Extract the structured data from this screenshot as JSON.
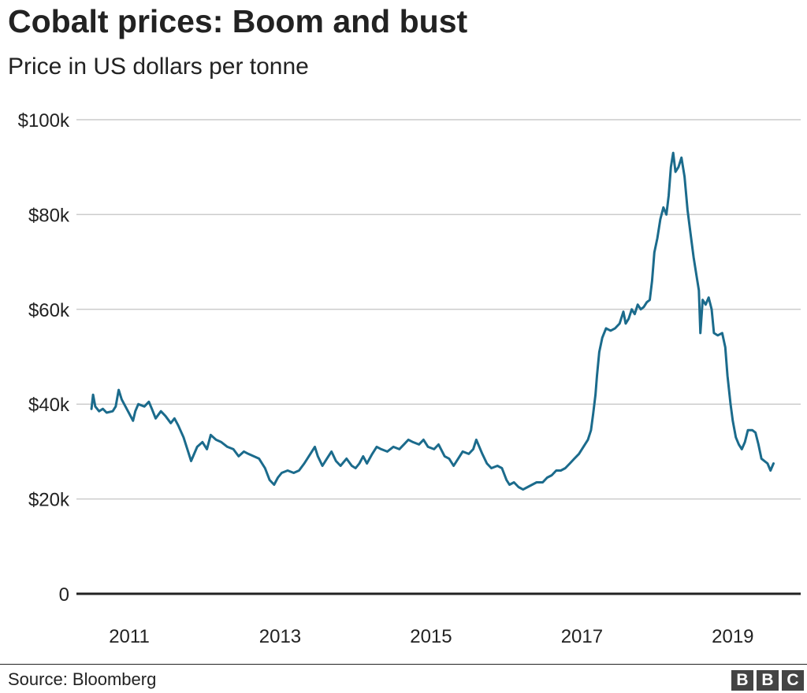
{
  "title": "Cobalt prices: Boom and bust",
  "subtitle": "Price in US dollars per tonne",
  "source": "Source: Bloomberg",
  "logo": [
    "B",
    "B",
    "C"
  ],
  "colors": {
    "line": "#1b6b8c",
    "grid": "#cccccc",
    "baseline": "#222222",
    "text": "#222222"
  },
  "chart_data": {
    "type": "line",
    "title": "Cobalt prices: Boom and bust",
    "subtitle": "Price in US dollars per tonne",
    "xlabel": "",
    "ylabel": "",
    "xlim": [
      2010.3,
      2019.9
    ],
    "ylim": [
      0,
      100000
    ],
    "y_ticks": [
      0,
      20000,
      40000,
      60000,
      80000,
      100000
    ],
    "y_tick_labels": [
      "0",
      "$20k",
      "$40k",
      "$60k",
      "$80k",
      "$100k"
    ],
    "x_ticks": [
      2011,
      2013,
      2015,
      2017,
      2019
    ],
    "x_tick_labels": [
      "2011",
      "2013",
      "2015",
      "2017",
      "2019"
    ],
    "grid": true,
    "legend": "none",
    "series": [
      {
        "values": [
          [
            2010.5,
            39000
          ],
          [
            2010.52,
            42000
          ],
          [
            2010.55,
            39500
          ],
          [
            2010.6,
            38500
          ],
          [
            2010.65,
            39000
          ],
          [
            2010.7,
            38200
          ],
          [
            2010.78,
            38500
          ],
          [
            2010.82,
            39500
          ],
          [
            2010.86,
            43000
          ],
          [
            2010.9,
            41000
          ],
          [
            2010.95,
            39500
          ],
          [
            2011.0,
            38000
          ],
          [
            2011.05,
            36500
          ],
          [
            2011.08,
            38500
          ],
          [
            2011.12,
            40000
          ],
          [
            2011.2,
            39500
          ],
          [
            2011.26,
            40500
          ],
          [
            2011.3,
            39000
          ],
          [
            2011.35,
            37000
          ],
          [
            2011.42,
            38500
          ],
          [
            2011.48,
            37500
          ],
          [
            2011.55,
            36000
          ],
          [
            2011.6,
            37000
          ],
          [
            2011.65,
            35500
          ],
          [
            2011.72,
            33000
          ],
          [
            2011.78,
            30000
          ],
          [
            2011.82,
            28000
          ],
          [
            2011.9,
            31000
          ],
          [
            2011.97,
            32000
          ],
          [
            2012.03,
            30500
          ],
          [
            2012.08,
            33500
          ],
          [
            2012.15,
            32500
          ],
          [
            2012.22,
            32000
          ],
          [
            2012.3,
            31000
          ],
          [
            2012.38,
            30500
          ],
          [
            2012.45,
            29000
          ],
          [
            2012.52,
            30000
          ],
          [
            2012.58,
            29500
          ],
          [
            2012.65,
            29000
          ],
          [
            2012.72,
            28500
          ],
          [
            2012.8,
            26500
          ],
          [
            2012.86,
            24000
          ],
          [
            2012.92,
            23000
          ],
          [
            2012.97,
            24500
          ],
          [
            2013.02,
            25500
          ],
          [
            2013.1,
            26000
          ],
          [
            2013.18,
            25500
          ],
          [
            2013.25,
            26000
          ],
          [
            2013.32,
            27500
          ],
          [
            2013.4,
            29500
          ],
          [
            2013.46,
            31000
          ],
          [
            2013.5,
            29000
          ],
          [
            2013.56,
            27000
          ],
          [
            2013.62,
            28500
          ],
          [
            2013.68,
            30000
          ],
          [
            2013.74,
            28000
          ],
          [
            2013.8,
            27000
          ],
          [
            2013.88,
            28500
          ],
          [
            2013.95,
            27000
          ],
          [
            2014.0,
            26500
          ],
          [
            2014.05,
            27500
          ],
          [
            2014.1,
            29000
          ],
          [
            2014.15,
            27500
          ],
          [
            2014.22,
            29500
          ],
          [
            2014.28,
            31000
          ],
          [
            2014.34,
            30500
          ],
          [
            2014.42,
            30000
          ],
          [
            2014.5,
            31000
          ],
          [
            2014.58,
            30500
          ],
          [
            2014.64,
            31500
          ],
          [
            2014.7,
            32500
          ],
          [
            2014.76,
            32000
          ],
          [
            2014.84,
            31500
          ],
          [
            2014.9,
            32500
          ],
          [
            2014.96,
            31000
          ],
          [
            2015.04,
            30500
          ],
          [
            2015.1,
            31500
          ],
          [
            2015.18,
            29000
          ],
          [
            2015.24,
            28500
          ],
          [
            2015.3,
            27000
          ],
          [
            2015.36,
            28500
          ],
          [
            2015.42,
            30000
          ],
          [
            2015.5,
            29500
          ],
          [
            2015.56,
            30500
          ],
          [
            2015.6,
            32500
          ],
          [
            2015.64,
            31000
          ],
          [
            2015.68,
            29500
          ],
          [
            2015.74,
            27500
          ],
          [
            2015.8,
            26500
          ],
          [
            2015.88,
            27000
          ],
          [
            2015.94,
            26500
          ],
          [
            2016.0,
            24000
          ],
          [
            2016.04,
            23000
          ],
          [
            2016.1,
            23500
          ],
          [
            2016.16,
            22500
          ],
          [
            2016.22,
            22000
          ],
          [
            2016.28,
            22500
          ],
          [
            2016.34,
            23000
          ],
          [
            2016.4,
            23500
          ],
          [
            2016.48,
            23500
          ],
          [
            2016.54,
            24500
          ],
          [
            2016.6,
            25000
          ],
          [
            2016.66,
            26000
          ],
          [
            2016.72,
            26000
          ],
          [
            2016.78,
            26500
          ],
          [
            2016.84,
            27500
          ],
          [
            2016.9,
            28500
          ],
          [
            2016.96,
            29500
          ],
          [
            2017.0,
            30500
          ],
          [
            2017.04,
            31500
          ],
          [
            2017.08,
            32500
          ],
          [
            2017.12,
            34500
          ],
          [
            2017.15,
            38000
          ],
          [
            2017.18,
            42000
          ],
          [
            2017.2,
            46000
          ],
          [
            2017.23,
            51000
          ],
          [
            2017.27,
            54000
          ],
          [
            2017.32,
            56000
          ],
          [
            2017.38,
            55500
          ],
          [
            2017.44,
            56000
          ],
          [
            2017.5,
            57000
          ],
          [
            2017.55,
            59500
          ],
          [
            2017.58,
            57000
          ],
          [
            2017.62,
            58000
          ],
          [
            2017.66,
            60000
          ],
          [
            2017.7,
            59000
          ],
          [
            2017.74,
            61000
          ],
          [
            2017.78,
            60000
          ],
          [
            2017.82,
            60500
          ],
          [
            2017.86,
            61500
          ],
          [
            2017.9,
            62000
          ],
          [
            2017.93,
            66000
          ],
          [
            2017.96,
            72000
          ],
          [
            2018.0,
            75000
          ],
          [
            2018.04,
            79000
          ],
          [
            2018.08,
            81500
          ],
          [
            2018.12,
            80000
          ],
          [
            2018.15,
            84000
          ],
          [
            2018.18,
            90000
          ],
          [
            2018.21,
            93000
          ],
          [
            2018.24,
            89000
          ],
          [
            2018.28,
            90000
          ],
          [
            2018.32,
            92000
          ],
          [
            2018.36,
            88000
          ],
          [
            2018.4,
            81000
          ],
          [
            2018.44,
            76000
          ],
          [
            2018.48,
            71000
          ],
          [
            2018.52,
            67000
          ],
          [
            2018.55,
            64000
          ],
          [
            2018.57,
            55000
          ],
          [
            2018.6,
            62000
          ],
          [
            2018.64,
            61000
          ],
          [
            2018.68,
            62500
          ],
          [
            2018.72,
            60000
          ],
          [
            2018.75,
            55000
          ],
          [
            2018.8,
            54500
          ],
          [
            2018.86,
            55000
          ],
          [
            2018.9,
            52000
          ],
          [
            2018.93,
            46000
          ],
          [
            2018.97,
            40000
          ],
          [
            2019.0,
            36500
          ],
          [
            2019.04,
            33000
          ],
          [
            2019.08,
            31500
          ],
          [
            2019.12,
            30500
          ],
          [
            2019.16,
            32000
          ],
          [
            2019.2,
            34500
          ],
          [
            2019.26,
            34500
          ],
          [
            2019.3,
            34000
          ],
          [
            2019.34,
            31500
          ],
          [
            2019.38,
            28500
          ],
          [
            2019.42,
            28000
          ],
          [
            2019.46,
            27500
          ],
          [
            2019.5,
            26000
          ],
          [
            2019.54,
            27500
          ]
        ]
      }
    ]
  }
}
